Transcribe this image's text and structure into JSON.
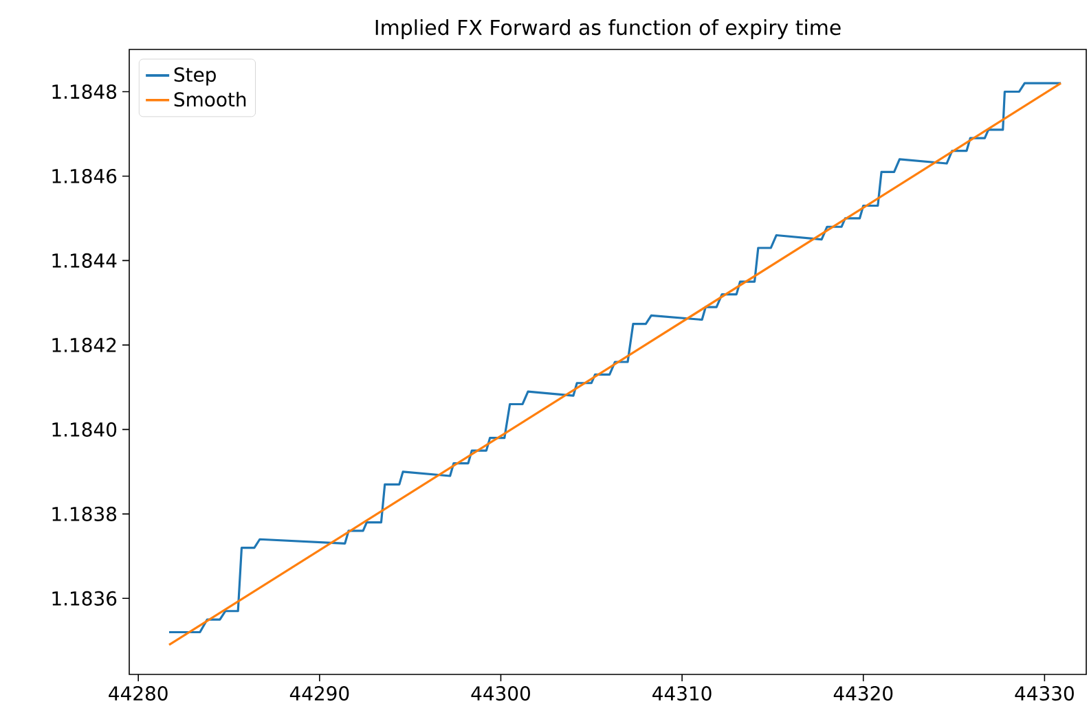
{
  "chart_data": {
    "type": "line",
    "title": "Implied FX Forward as function of expiry time",
    "xlim": [
      44279.5,
      44332.3
    ],
    "xticks": [
      44280,
      44290,
      44300,
      44310,
      44320,
      44330
    ],
    "ylim": [
      1.18342,
      1.1849
    ],
    "yticks": [
      1.1836,
      1.1838,
      {
        "value": 1.184,
        "label": "1.1840"
      },
      1.1842,
      1.1844,
      1.1846,
      1.1848
    ],
    "legend": "top left",
    "grid": false,
    "marker": "none",
    "line_style": "solid",
    "series": [
      {
        "name": "Step",
        "color": "#1f77b4",
        "x": [
          44281.7,
          44283.4,
          44283.8,
          44284.5,
          44284.8,
          44285.5,
          44285.7,
          44286.4,
          44286.7,
          44291.4,
          44291.6,
          44292.4,
          44292.6,
          44293.4,
          44293.6,
          44294.4,
          44294.6,
          44297.2,
          44297.4,
          44298.2,
          44298.4,
          44299.2,
          44299.4,
          44300.2,
          44300.5,
          44301.2,
          44301.5,
          44304.0,
          44304.2,
          44305.0,
          44305.2,
          44306.0,
          44306.3,
          44307.0,
          44307.3,
          44308.0,
          44308.3,
          44311.1,
          44311.3,
          44311.9,
          44312.2,
          44313.0,
          44313.2,
          44314.0,
          44314.2,
          44314.9,
          44315.2,
          44317.7,
          44318.0,
          44318.8,
          44319.0,
          44319.8,
          44320.0,
          44320.8,
          44321.0,
          44321.7,
          44322.0,
          44324.6,
          44324.9,
          44325.7,
          44325.9,
          44326.7,
          44326.9,
          44327.7,
          44327.8,
          44328.6,
          44328.9,
          44330.9
        ],
        "values": [
          1.18352,
          1.18352,
          1.18355,
          1.18355,
          1.18357,
          1.18357,
          1.18372,
          1.18372,
          1.18374,
          1.18373,
          1.18376,
          1.18376,
          1.18378,
          1.18378,
          1.18387,
          1.18387,
          1.1839,
          1.18389,
          1.18392,
          1.18392,
          1.18395,
          1.18395,
          1.18398,
          1.18398,
          1.18406,
          1.18406,
          1.18409,
          1.18408,
          1.18411,
          1.18411,
          1.18413,
          1.18413,
          1.18416,
          1.18416,
          1.18425,
          1.18425,
          1.18427,
          1.18426,
          1.18429,
          1.18429,
          1.18432,
          1.18432,
          1.18435,
          1.18435,
          1.18443,
          1.18443,
          1.18446,
          1.18445,
          1.18448,
          1.18448,
          1.1845,
          1.1845,
          1.18453,
          1.18453,
          1.18461,
          1.18461,
          1.18464,
          1.18463,
          1.18466,
          1.18466,
          1.18469,
          1.18469,
          1.18471,
          1.18471,
          1.1848,
          1.1848,
          1.18482,
          1.18482
        ]
      },
      {
        "name": "Smooth",
        "color": "#ff7f0e",
        "x": [
          44281.7,
          44330.9
        ],
        "values": [
          1.18349,
          1.18482
        ]
      }
    ]
  }
}
